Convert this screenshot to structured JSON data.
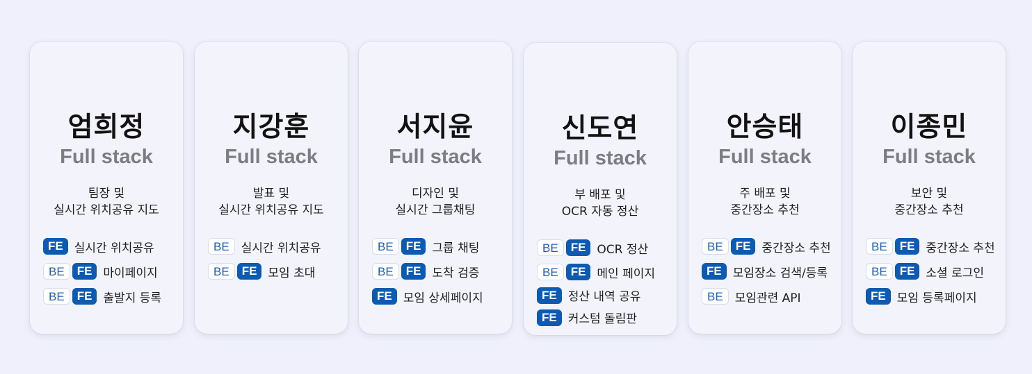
{
  "colors": {
    "page_background": "#eff0fb",
    "card_background": "#f3f3fb",
    "fe_badge": "#0c5ab1",
    "be_badge_text": "#1f61b7",
    "role_text": "#7c7d82"
  },
  "members": [
    {
      "name": "엄희정",
      "role": "Full stack",
      "desc": [
        "팀장 및",
        "실시간 위치공유 지도"
      ],
      "tasks": [
        {
          "badges": [
            "FE"
          ],
          "text": "실시간 위치공유"
        },
        {
          "badges": [
            "BE",
            "FE"
          ],
          "text": "마이페이지"
        },
        {
          "badges": [
            "BE",
            "FE"
          ],
          "text": "출발지 등록"
        }
      ]
    },
    {
      "name": "지강훈",
      "role": "Full stack",
      "desc": [
        "발표 및",
        "실시간 위치공유 지도"
      ],
      "tasks": [
        {
          "badges": [
            "BE"
          ],
          "text": "실시간 위치공유"
        },
        {
          "badges": [
            "BE",
            "FE"
          ],
          "text": "모임 초대"
        }
      ]
    },
    {
      "name": "서지윤",
      "role": "Full stack",
      "desc": [
        "디자인 및",
        "실시간 그룹채팅"
      ],
      "tasks": [
        {
          "badges": [
            "BE",
            "FE"
          ],
          "text": "그룹 채팅"
        },
        {
          "badges": [
            "BE",
            "FE"
          ],
          "text": "도착 검증"
        },
        {
          "badges": [
            "FE"
          ],
          "text": "모임 상세페이지"
        }
      ]
    },
    {
      "name": "신도연",
      "role": "Full stack",
      "desc": [
        "부 배포 및",
        "OCR 자동 정산"
      ],
      "tasks": [
        {
          "badges": [
            "BE",
            "FE"
          ],
          "text": "OCR 정산"
        },
        {
          "badges": [
            "BE",
            "FE"
          ],
          "text": "메인 페이지"
        },
        {
          "badges": [
            "FE"
          ],
          "text": "정산 내역 공유"
        },
        {
          "badges": [
            "FE"
          ],
          "text": "커스텀 돌림판"
        }
      ]
    },
    {
      "name": "안승태",
      "role": "Full stack",
      "desc": [
        "주 배포 및",
        "중간장소 추천"
      ],
      "tasks": [
        {
          "badges": [
            "BE",
            "FE"
          ],
          "text": "중간장소 추천"
        },
        {
          "badges": [
            "FE"
          ],
          "text": "모임장소 검색/등록"
        },
        {
          "badges": [
            "BE"
          ],
          "text": "모임관련 API"
        }
      ]
    },
    {
      "name": "이종민",
      "role": "Full stack",
      "desc": [
        "보안 및",
        "중간장소 추천"
      ],
      "tasks": [
        {
          "badges": [
            "BE",
            "FE"
          ],
          "text": "중간장소 추천"
        },
        {
          "badges": [
            "BE",
            "FE"
          ],
          "text": "소셜 로그인"
        },
        {
          "badges": [
            "FE"
          ],
          "text": "모임 등록페이지"
        }
      ]
    }
  ]
}
